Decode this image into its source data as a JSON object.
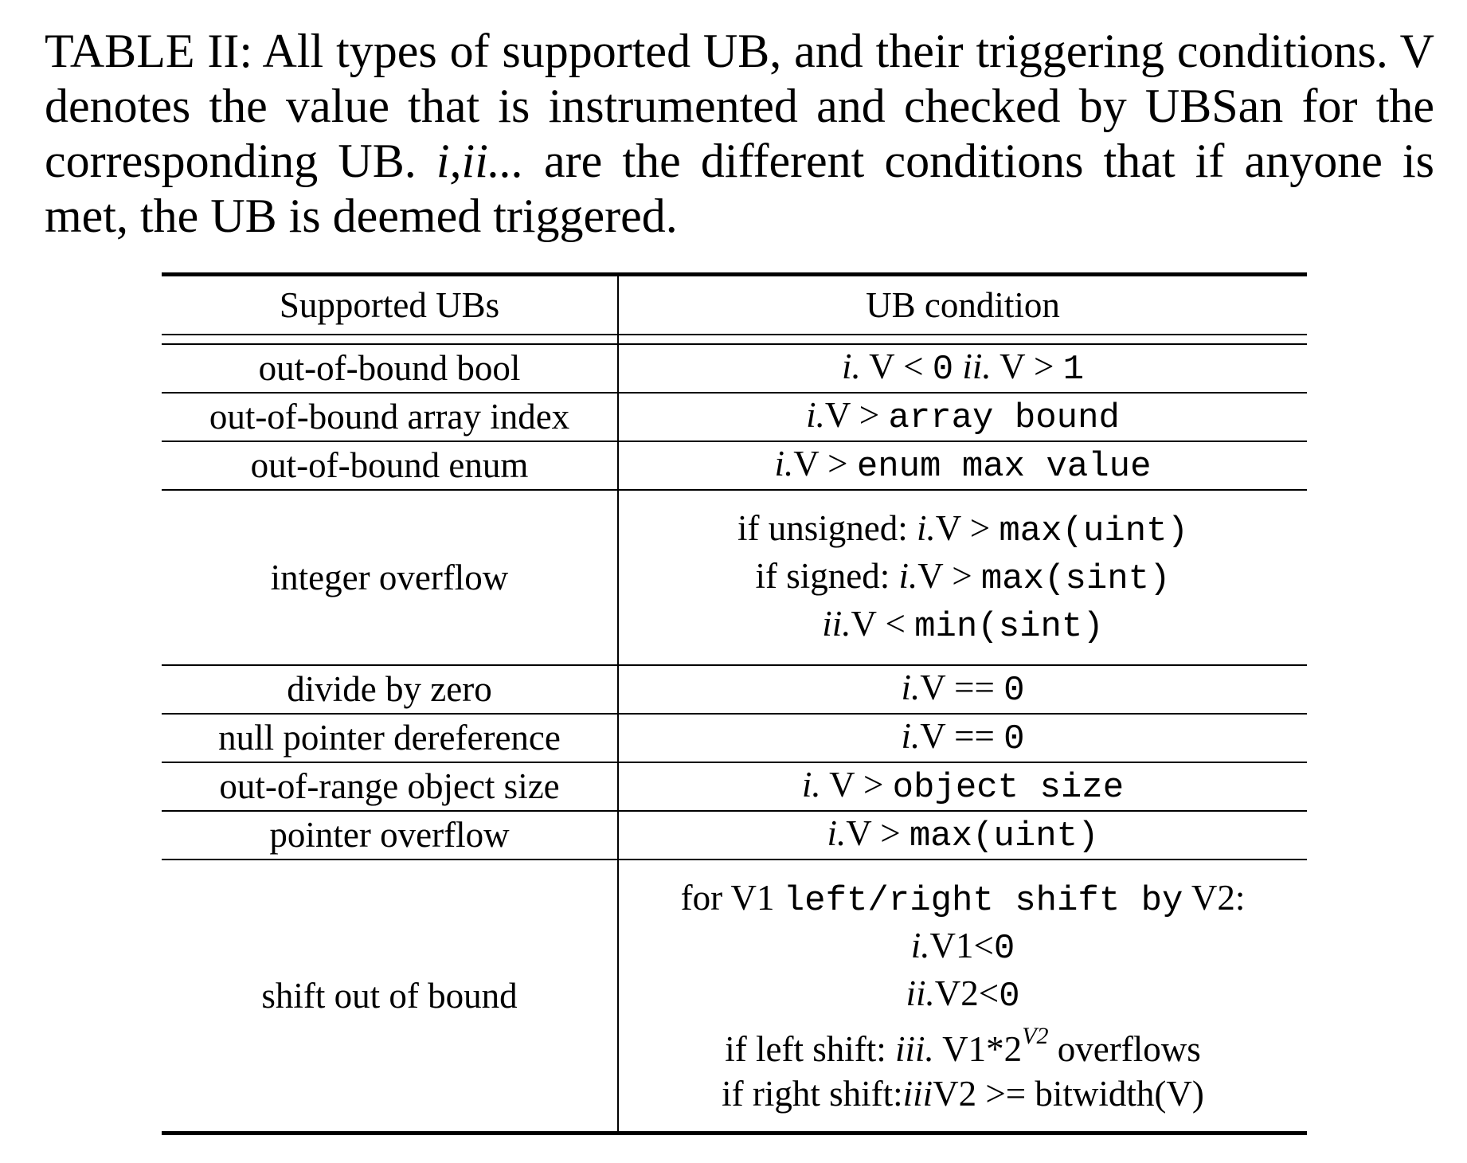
{
  "caption": {
    "label": "TABLE II:",
    "text_a": " All types of supported UB, and their triggering conditions. V denotes the value that is instrumented and checked by UBSan for the corresponding UB. ",
    "text_italic": "i,ii...",
    "text_b": " are the different conditions that if anyone is met, the UB is deemed triggered."
  },
  "table": {
    "headers": [
      "Supported UBs",
      "UB condition"
    ],
    "rows": [
      {
        "ub": "out-of-bound bool"
      },
      {
        "ub": "out-of-bound array index"
      },
      {
        "ub": "out-of-bound enum"
      },
      {
        "ub": "integer overflow"
      },
      {
        "ub": "divide by zero"
      },
      {
        "ub": "null pointer dereference"
      },
      {
        "ub": "out-of-range object size"
      },
      {
        "ub": "pointer overflow"
      },
      {
        "ub": "shift out of bound"
      }
    ],
    "conditions": {
      "bool": {
        "i": "i.",
        "t1": " V < ",
        "m1": "0",
        "ii": " ii.",
        "t2": " V > ",
        "m2": "1"
      },
      "array": {
        "i": "i.",
        "t1": "V > ",
        "m1": "array bound"
      },
      "enum": {
        "i": "i.",
        "t1": "V > ",
        "m1": "enum max value"
      },
      "int_overflow": {
        "l1_pre": "if unsigned: ",
        "l1_i": "i.",
        "l1_t": "V > ",
        "l1_m": "max(uint)",
        "l2_pre": "if signed: ",
        "l2_i": "i.",
        "l2_t": "V > ",
        "l2_m": "max(sint)",
        "l3_i": "ii.",
        "l3_t": "V < ",
        "l3_m": "min(sint)"
      },
      "divide": {
        "i": "i.",
        "t1": "V == ",
        "m1": "0"
      },
      "null": {
        "i": "i.",
        "t1": "V == ",
        "m1": "0"
      },
      "objsize": {
        "i": "i.",
        "t1": " V > ",
        "m1": "object size"
      },
      "ptr_overflow": {
        "i": "i.",
        "t1": "V > ",
        "m1": "max(uint)"
      },
      "shift": {
        "l1_pre": "for V1 ",
        "l1_m": "left/right shift by",
        "l1_post": " V2:",
        "l2_i": "i.",
        "l2_t": "V1<",
        "l2_m": "0",
        "l3_i": "ii.",
        "l3_t": "V2<",
        "l3_m": "0",
        "l4_pre": "if left shift: ",
        "l4_i": "iii.",
        "l4_t": " V1*2",
        "l4_sup": "V2",
        "l4_post": " overflows",
        "l5_pre": "if right shift:",
        "l5_i": "iii",
        "l5_t": "V2 >= bitwidth(V)"
      }
    }
  }
}
